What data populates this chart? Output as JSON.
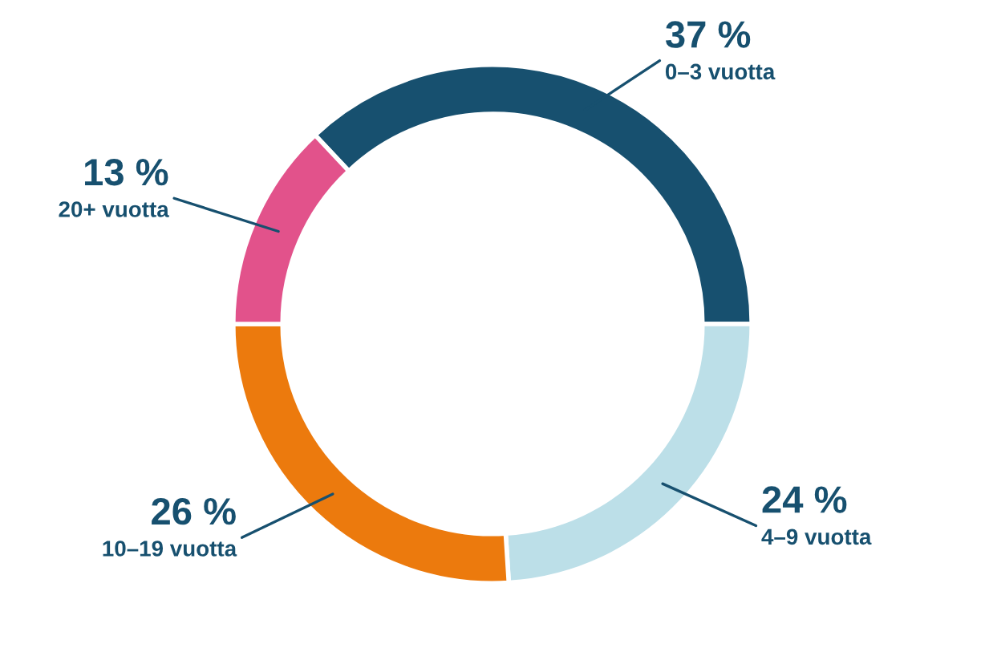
{
  "chart_data": {
    "type": "donut",
    "categories": [
      "0–3 vuotta",
      "4–9 vuotta",
      "10–19 vuotta",
      "20+ vuotta"
    ],
    "values": [
      37,
      24,
      26,
      13
    ],
    "value_labels": [
      "37 %",
      "24 %",
      "26 %",
      "13 %"
    ],
    "colors": [
      "#17506f",
      "#bcdfe8",
      "#ec7a0d",
      "#e2528b"
    ],
    "legend": false
  }
}
